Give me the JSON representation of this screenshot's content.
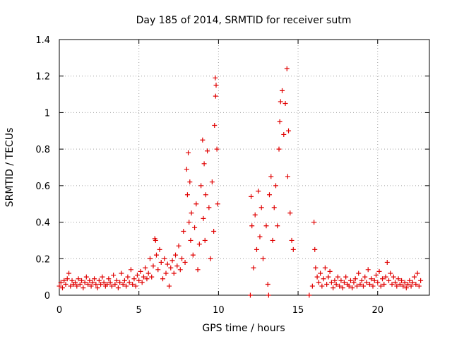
{
  "chart_data": {
    "type": "scatter",
    "title": "Day 185 of 2014, SRMTID for receiver sutm",
    "xlabel": "GPS time / hours",
    "ylabel": "SRMTID / TECUs",
    "xlim": [
      0,
      23.25
    ],
    "ylim": [
      0,
      1.4
    ],
    "xticks": [
      0,
      5,
      10,
      15,
      20
    ],
    "yticks": [
      0,
      0.2,
      0.4,
      0.6,
      0.8,
      1,
      1.2,
      1.4
    ],
    "xtick_labels": [
      "0",
      "5",
      "10",
      "15",
      "20"
    ],
    "ytick_labels": [
      "0",
      "0.2",
      "0.4",
      "0.6",
      "0.8",
      "1",
      "1.2",
      "1.4"
    ],
    "grid": true,
    "marker": "+",
    "color": "#e00000",
    "series": [
      {
        "name": "SRMTID",
        "points": [
          [
            0.0,
            0.05
          ],
          [
            0.1,
            0.07
          ],
          [
            0.2,
            0.04
          ],
          [
            0.3,
            0.08
          ],
          [
            0.4,
            0.06
          ],
          [
            0.5,
            0.09
          ],
          [
            0.6,
            0.12
          ],
          [
            0.7,
            0.05
          ],
          [
            0.8,
            0.08
          ],
          [
            0.9,
            0.06
          ],
          [
            1.0,
            0.07
          ],
          [
            1.1,
            0.05
          ],
          [
            1.2,
            0.09
          ],
          [
            1.3,
            0.06
          ],
          [
            1.4,
            0.08
          ],
          [
            1.5,
            0.04
          ],
          [
            1.6,
            0.07
          ],
          [
            1.7,
            0.1
          ],
          [
            1.8,
            0.06
          ],
          [
            1.9,
            0.08
          ],
          [
            2.0,
            0.05
          ],
          [
            2.1,
            0.07
          ],
          [
            2.2,
            0.09
          ],
          [
            2.3,
            0.06
          ],
          [
            2.4,
            0.04
          ],
          [
            2.5,
            0.08
          ],
          [
            2.6,
            0.06
          ],
          [
            2.7,
            0.1
          ],
          [
            2.8,
            0.07
          ],
          [
            2.9,
            0.05
          ],
          [
            3.0,
            0.06
          ],
          [
            3.1,
            0.09
          ],
          [
            3.2,
            0.07
          ],
          [
            3.3,
            0.05
          ],
          [
            3.4,
            0.11
          ],
          [
            3.5,
            0.06
          ],
          [
            3.6,
            0.08
          ],
          [
            3.7,
            0.04
          ],
          [
            3.8,
            0.07
          ],
          [
            3.9,
            0.12
          ],
          [
            4.0,
            0.06
          ],
          [
            4.1,
            0.08
          ],
          [
            4.2,
            0.05
          ],
          [
            4.3,
            0.1
          ],
          [
            4.4,
            0.07
          ],
          [
            4.5,
            0.14
          ],
          [
            4.6,
            0.06
          ],
          [
            4.7,
            0.09
          ],
          [
            4.8,
            0.05
          ],
          [
            4.9,
            0.11
          ],
          [
            5.0,
            0.08
          ],
          [
            5.1,
            0.13
          ],
          [
            5.2,
            0.07
          ],
          [
            5.3,
            0.1
          ],
          [
            5.4,
            0.15
          ],
          [
            5.5,
            0.09
          ],
          [
            5.6,
            0.12
          ],
          [
            5.7,
            0.2
          ],
          [
            5.8,
            0.1
          ],
          [
            5.9,
            0.16
          ],
          [
            6.0,
            0.31
          ],
          [
            6.05,
            0.3
          ],
          [
            6.1,
            0.22
          ],
          [
            6.2,
            0.14
          ],
          [
            6.3,
            0.25
          ],
          [
            6.4,
            0.18
          ],
          [
            6.5,
            0.09
          ],
          [
            6.6,
            0.2
          ],
          [
            6.7,
            0.12
          ],
          [
            6.8,
            0.17
          ],
          [
            6.9,
            0.05
          ],
          [
            7.0,
            0.15
          ],
          [
            7.1,
            0.19
          ],
          [
            7.2,
            0.12
          ],
          [
            7.3,
            0.22
          ],
          [
            7.4,
            0.16
          ],
          [
            7.5,
            0.27
          ],
          [
            7.6,
            0.14
          ],
          [
            7.7,
            0.2
          ],
          [
            7.8,
            0.35
          ],
          [
            7.9,
            0.18
          ],
          [
            8.0,
            0.69
          ],
          [
            8.05,
            0.55
          ],
          [
            8.1,
            0.78
          ],
          [
            8.15,
            0.4
          ],
          [
            8.2,
            0.62
          ],
          [
            8.25,
            0.3
          ],
          [
            8.3,
            0.45
          ],
          [
            8.4,
            0.22
          ],
          [
            8.5,
            0.37
          ],
          [
            8.6,
            0.5
          ],
          [
            8.7,
            0.14
          ],
          [
            8.8,
            0.28
          ],
          [
            8.9,
            0.6
          ],
          [
            9.0,
            0.85
          ],
          [
            9.05,
            0.42
          ],
          [
            9.1,
            0.72
          ],
          [
            9.15,
            0.3
          ],
          [
            9.2,
            0.55
          ],
          [
            9.3,
            0.79
          ],
          [
            9.4,
            0.48
          ],
          [
            9.5,
            0.2
          ],
          [
            9.6,
            0.62
          ],
          [
            9.7,
            0.35
          ],
          [
            9.75,
            0.93
          ],
          [
            9.8,
            1.19
          ],
          [
            9.82,
            1.09
          ],
          [
            9.85,
            1.15
          ],
          [
            9.9,
            0.8
          ],
          [
            9.95,
            0.5
          ],
          [
            12.0,
            0.0
          ],
          [
            12.05,
            0.54
          ],
          [
            12.1,
            0.38
          ],
          [
            12.2,
            0.15
          ],
          [
            12.3,
            0.44
          ],
          [
            12.4,
            0.25
          ],
          [
            12.5,
            0.57
          ],
          [
            12.6,
            0.32
          ],
          [
            12.7,
            0.48
          ],
          [
            12.8,
            0.2
          ],
          [
            13.0,
            0.38
          ],
          [
            13.1,
            0.06
          ],
          [
            13.15,
            0.0
          ],
          [
            13.2,
            0.55
          ],
          [
            13.3,
            0.65
          ],
          [
            13.4,
            0.3
          ],
          [
            13.5,
            0.48
          ],
          [
            13.6,
            0.6
          ],
          [
            13.7,
            0.38
          ],
          [
            13.8,
            0.8
          ],
          [
            13.85,
            0.95
          ],
          [
            13.9,
            1.06
          ],
          [
            14.0,
            1.12
          ],
          [
            14.1,
            0.88
          ],
          [
            14.2,
            1.05
          ],
          [
            14.3,
            1.24
          ],
          [
            14.35,
            0.65
          ],
          [
            14.4,
            0.9
          ],
          [
            14.5,
            0.45
          ],
          [
            14.6,
            0.3
          ],
          [
            14.7,
            0.25
          ],
          [
            15.7,
            0.0
          ],
          [
            15.9,
            0.05
          ],
          [
            16.0,
            0.4
          ],
          [
            16.05,
            0.25
          ],
          [
            16.1,
            0.15
          ],
          [
            16.2,
            0.1
          ],
          [
            16.3,
            0.07
          ],
          [
            16.4,
            0.12
          ],
          [
            16.5,
            0.05
          ],
          [
            16.6,
            0.09
          ],
          [
            16.7,
            0.15
          ],
          [
            16.8,
            0.06
          ],
          [
            16.9,
            0.1
          ],
          [
            17.0,
            0.13
          ],
          [
            17.1,
            0.07
          ],
          [
            17.2,
            0.04
          ],
          [
            17.3,
            0.08
          ],
          [
            17.4,
            0.06
          ],
          [
            17.5,
            0.1
          ],
          [
            17.6,
            0.05
          ],
          [
            17.7,
            0.08
          ],
          [
            17.8,
            0.04
          ],
          [
            17.9,
            0.07
          ],
          [
            18.0,
            0.1
          ],
          [
            18.1,
            0.06
          ],
          [
            18.2,
            0.05
          ],
          [
            18.3,
            0.08
          ],
          [
            18.4,
            0.04
          ],
          [
            18.5,
            0.07
          ],
          [
            18.6,
            0.09
          ],
          [
            18.7,
            0.05
          ],
          [
            18.8,
            0.12
          ],
          [
            18.9,
            0.06
          ],
          [
            19.0,
            0.08
          ],
          [
            19.1,
            0.05
          ],
          [
            19.2,
            0.1
          ],
          [
            19.3,
            0.07
          ],
          [
            19.4,
            0.14
          ],
          [
            19.5,
            0.06
          ],
          [
            19.6,
            0.09
          ],
          [
            19.7,
            0.05
          ],
          [
            19.8,
            0.08
          ],
          [
            19.9,
            0.11
          ],
          [
            20.0,
            0.07
          ],
          [
            20.1,
            0.13
          ],
          [
            20.2,
            0.05
          ],
          [
            20.3,
            0.09
          ],
          [
            20.4,
            0.06
          ],
          [
            20.5,
            0.1
          ],
          [
            20.6,
            0.18
          ],
          [
            20.7,
            0.08
          ],
          [
            20.8,
            0.12
          ],
          [
            20.9,
            0.06
          ],
          [
            21.0,
            0.1
          ],
          [
            21.1,
            0.07
          ],
          [
            21.2,
            0.05
          ],
          [
            21.3,
            0.09
          ],
          [
            21.4,
            0.06
          ],
          [
            21.5,
            0.08
          ],
          [
            21.6,
            0.05
          ],
          [
            21.7,
            0.07
          ],
          [
            21.8,
            0.04
          ],
          [
            21.9,
            0.06
          ],
          [
            22.0,
            0.08
          ],
          [
            22.1,
            0.05
          ],
          [
            22.2,
            0.07
          ],
          [
            22.3,
            0.1
          ],
          [
            22.4,
            0.06
          ],
          [
            22.5,
            0.12
          ],
          [
            22.6,
            0.05
          ],
          [
            22.7,
            0.08
          ]
        ]
      }
    ]
  }
}
